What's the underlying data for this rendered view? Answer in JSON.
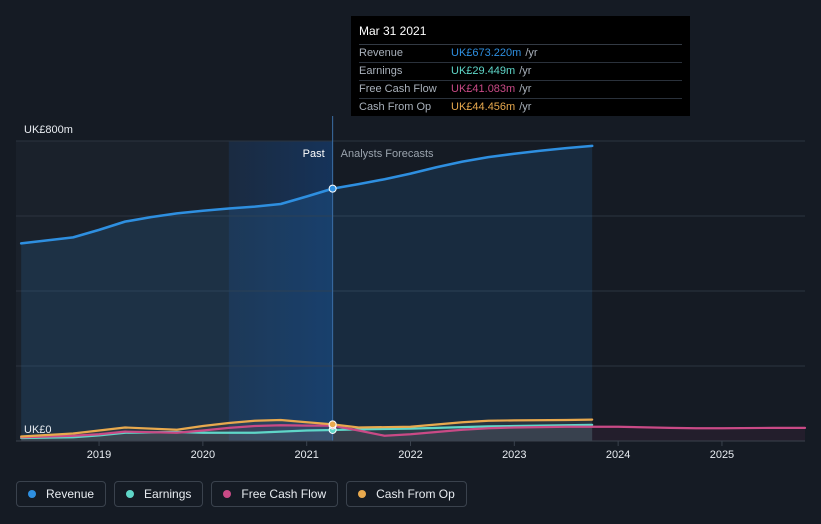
{
  "chart_data": {
    "type": "line",
    "title": "",
    "ylabel": "",
    "xlabel": "",
    "ylim": [
      0,
      800
    ],
    "xlim": [
      2018.2,
      2025.8
    ],
    "y_tick_labels": [
      {
        "value": 800,
        "label": "UK£800m"
      },
      {
        "value": 0,
        "label": "UK£0"
      }
    ],
    "gridlines": [
      0,
      200,
      400,
      600,
      800
    ],
    "x_ticks": [
      2019,
      2020,
      2021,
      2022,
      2023,
      2024,
      2025
    ],
    "x_tick_labels": [
      "2019",
      "2020",
      "2021",
      "2022",
      "2023",
      "2024",
      "2025"
    ],
    "past_label": "Past",
    "forecast_label": "Analysts Forecasts",
    "past_end": 2021.25,
    "highlight_start": 2020.25,
    "forecast_end": 2023.75,
    "series": [
      {
        "name": "Revenue",
        "color": "#2e8fe0",
        "x": [
          2018.25,
          2018.5,
          2018.75,
          2019.0,
          2019.25,
          2019.5,
          2019.75,
          2020.0,
          2020.25,
          2020.5,
          2020.75,
          2021.0,
          2021.25,
          2021.5,
          2021.75,
          2022.0,
          2022.25,
          2022.5,
          2022.75,
          2023.0,
          2023.25,
          2023.5,
          2023.75
        ],
        "values": [
          527,
          535,
          543,
          563,
          585,
          597,
          607,
          614,
          620,
          625,
          632,
          652,
          673,
          685,
          698,
          713,
          730,
          745,
          757,
          766,
          774,
          781,
          787
        ]
      },
      {
        "name": "Earnings",
        "color": "#5fd6c8",
        "x": [
          2018.25,
          2018.75,
          2019.0,
          2019.25,
          2019.75,
          2020.0,
          2020.5,
          2020.75,
          2021.0,
          2021.25,
          2021.5,
          2022.0,
          2022.5,
          2022.75,
          2023.0,
          2023.5,
          2023.75
        ],
        "values": [
          8,
          10,
          15,
          22,
          24,
          22,
          22,
          25,
          28,
          29.4,
          31,
          33,
          37,
          39,
          40,
          42,
          43
        ]
      },
      {
        "name": "Free Cash Flow",
        "color": "#c94a86",
        "x": [
          2018.25,
          2018.75,
          2019.0,
          2019.25,
          2019.75,
          2020.0,
          2020.25,
          2020.5,
          2020.75,
          2021.0,
          2021.25,
          2021.5,
          2021.75,
          2022.0,
          2022.5,
          2022.75,
          2023.0,
          2023.5,
          2023.75,
          2024.0,
          2024.5,
          2024.75,
          2025.0,
          2025.5,
          2025.8
        ],
        "values": [
          10,
          14,
          18,
          25,
          22,
          28,
          35,
          40,
          42,
          41,
          41.1,
          28,
          14,
          18,
          30,
          34,
          36,
          38,
          38,
          38,
          35,
          34,
          34,
          35,
          35
        ]
      },
      {
        "name": "Cash From Op",
        "color": "#e8a94e",
        "x": [
          2018.25,
          2018.75,
          2019.0,
          2019.25,
          2019.75,
          2020.0,
          2020.25,
          2020.5,
          2020.75,
          2021.0,
          2021.25,
          2021.5,
          2022.0,
          2022.5,
          2022.75,
          2023.0,
          2023.5,
          2023.75
        ],
        "values": [
          12,
          20,
          28,
          36,
          30,
          40,
          48,
          54,
          56,
          50,
          44.5,
          36,
          38,
          50,
          54,
          55,
          56,
          57
        ]
      }
    ],
    "tooltip": {
      "date": "Mar 31 2021",
      "x": 2021.25,
      "rows": [
        {
          "name": "Revenue",
          "value": "UK£673.220m",
          "unit": "/yr",
          "color": "#2e8fe0"
        },
        {
          "name": "Earnings",
          "value": "UK£29.449m",
          "unit": "/yr",
          "color": "#5fd6c8"
        },
        {
          "name": "Free Cash Flow",
          "value": "UK£41.083m",
          "unit": "/yr",
          "color": "#c94a86"
        },
        {
          "name": "Cash From Op",
          "value": "UK£44.456m",
          "unit": "/yr",
          "color": "#e8a94e"
        }
      ]
    }
  },
  "legend": [
    {
      "label": "Revenue",
      "color": "#2e8fe0"
    },
    {
      "label": "Earnings",
      "color": "#5fd6c8"
    },
    {
      "label": "Free Cash Flow",
      "color": "#c94a86"
    },
    {
      "label": "Cash From Op",
      "color": "#e8a94e"
    }
  ]
}
